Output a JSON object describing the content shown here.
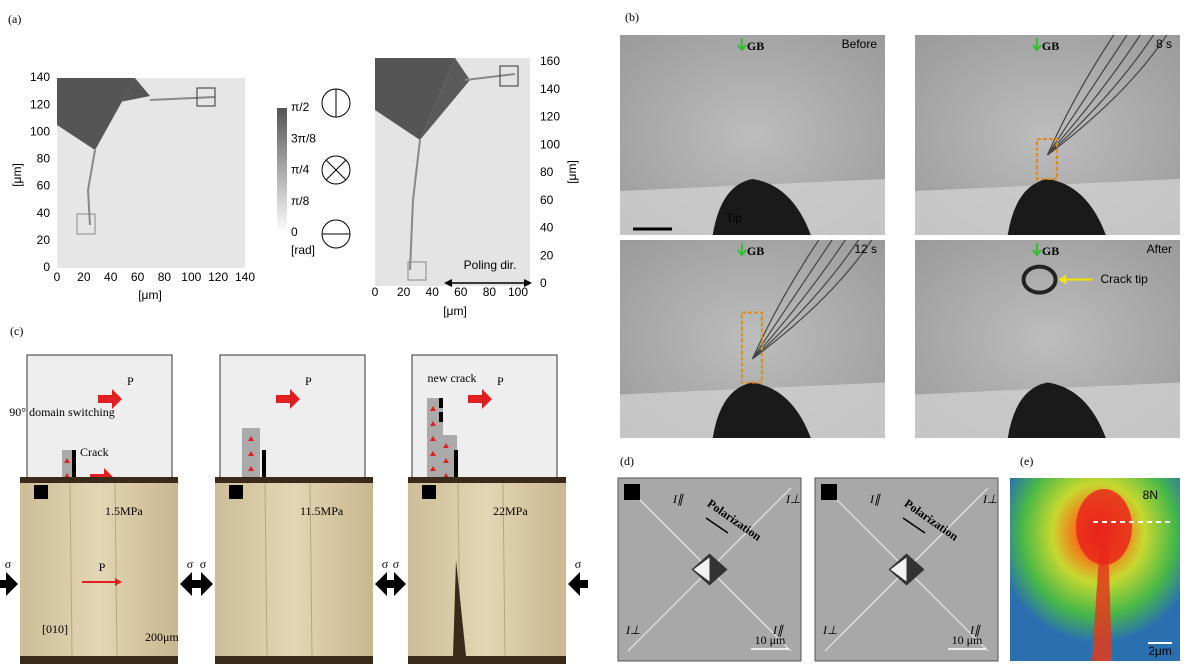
{
  "panel_a": {
    "label": "(a)",
    "map1": {
      "yticks": [
        0,
        20,
        40,
        60,
        80,
        100,
        120,
        140
      ],
      "xticks": [
        0,
        20,
        40,
        60,
        80,
        100,
        120,
        140
      ],
      "ylabel": "[μm]",
      "xlabel": "[μm]"
    },
    "colorbar": {
      "ticks": [
        "π/2",
        "3π/8",
        "π/4",
        "π/8",
        "0"
      ],
      "unit": "[rad]"
    },
    "map2": {
      "yticks": [
        0,
        20,
        40,
        60,
        80,
        100,
        120,
        140,
        160
      ],
      "xticks": [
        0,
        20,
        40,
        60,
        80,
        100
      ],
      "ylabel": "[μm]",
      "xlabel": "[μm]",
      "poling": "Poling dir."
    }
  },
  "panel_b": {
    "label": "(b)",
    "frames": [
      {
        "time": "Before",
        "gb": "GB",
        "note": "Tip"
      },
      {
        "time": "8 s",
        "gb": "GB"
      },
      {
        "time": "12 s",
        "gb": "GB"
      },
      {
        "time": "After",
        "gb": "GB",
        "note": "Crack tip"
      }
    ]
  },
  "panel_c": {
    "label": "(c)",
    "schematics": [
      {
        "p": "P",
        "notes": [
          "90° domain switching",
          "Crack"
        ]
      },
      {
        "p": "P"
      },
      {
        "p": "P",
        "notes": [
          "new crack"
        ]
      }
    ],
    "photos": [
      {
        "stress": "1.5MPa",
        "p": "P",
        "scale": "200μm",
        "axis": "[010]"
      },
      {
        "stress": "11.5MPa"
      },
      {
        "stress": "22MPa"
      }
    ],
    "sigma": "σ"
  },
  "panel_d": {
    "label": "(d)",
    "images": [
      {
        "polarization": "Polarization",
        "scale": "10 μm",
        "i_labels": [
          "I∥",
          "I⊥",
          "I⊥",
          "I∥"
        ]
      },
      {
        "polarization": "Polarization",
        "scale": "10 μm",
        "i_labels": [
          "I∥",
          "I⊥",
          "I⊥",
          "I∥"
        ]
      }
    ]
  },
  "panel_e": {
    "label": "(e)",
    "load": "8N",
    "scale": "2μm"
  }
}
